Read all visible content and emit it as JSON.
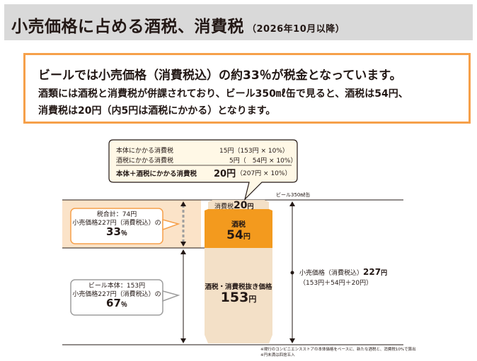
{
  "header": {
    "title": "小売価格に占める酒税、消費税",
    "subtitle": "（2026年10月以降）"
  },
  "summary": {
    "line1": "ビールでは小売価格（消費税込）の約33％が税金となっています。",
    "line2": "酒類には酒税と消費税が併課されており、ビール350㎖缶で見ると、酒税は54円、",
    "line3": "消費税は20円（内5円は酒税にかかる）となります。"
  },
  "callout": {
    "row1_label": "本体にかかる消費税",
    "row1_value": "15円（153円 × 10%）",
    "row2_label": "酒税にかかる消費税",
    "row2_value": "5円（　54円 × 10%）",
    "row3_label": "本体＋酒税にかかる消費税",
    "row3_amount": "20円",
    "row3_calc": "（207円 × 10%）"
  },
  "can": {
    "label": "ビール350㎖缶",
    "consumption_tax_label": "消費税",
    "consumption_tax_value": "20",
    "consumption_tax_unit": "円",
    "liquor_tax_label": "酒税",
    "liquor_tax_value": "54",
    "liquor_tax_unit": "円",
    "base_label": "酒税・消費税抜き価格",
    "base_value": "153",
    "base_unit": "円"
  },
  "left_boxes": {
    "tax_line1": "税合計：74円",
    "tax_line2": "小売価格227円（消費税込）の",
    "tax_pct": "33",
    "tax_pct_unit": "％",
    "body_line1": "ビール本体：153円",
    "body_line2": "小売価格227円（消費税込）の",
    "body_pct": "67",
    "body_pct_unit": "％"
  },
  "right_label": {
    "line1_prefix": "小売価格（消費税込）",
    "line1_amount": "227",
    "line1_unit": "円",
    "line2": "（153円＋54円＋20円）"
  },
  "notes": {
    "note1": "※現行のコンビニエンスストアの本体価格をベースに、新たな酒税と、消費税10%で算出",
    "note2": "※円未満は四捨五入"
  },
  "colors": {
    "header_bg": "#d9d9d9",
    "summary_border": "#f6a04a",
    "liquor_tax": "#f39a1e",
    "can_light": "#f3e0c7",
    "band_light": "#fbe3c8",
    "tax_box_border": "#f6a04a"
  }
}
